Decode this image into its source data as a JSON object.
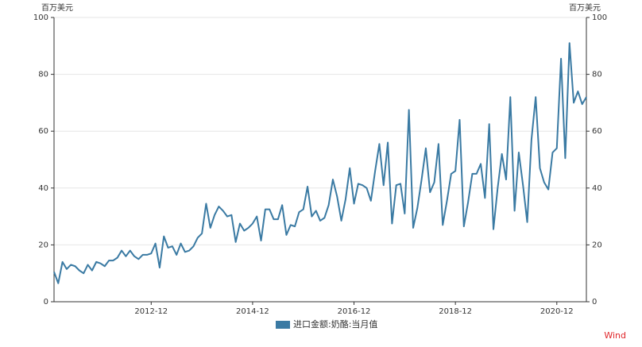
{
  "chart_data": {
    "type": "line",
    "y_unit": "百万美元",
    "y2_unit": "百万美元",
    "x": [
      "2011-01",
      "2011-02",
      "2011-03",
      "2011-04",
      "2011-05",
      "2011-06",
      "2011-07",
      "2011-08",
      "2011-09",
      "2011-10",
      "2011-11",
      "2011-12",
      "2012-01",
      "2012-02",
      "2012-03",
      "2012-04",
      "2012-05",
      "2012-06",
      "2012-07",
      "2012-08",
      "2012-09",
      "2012-10",
      "2012-11",
      "2012-12",
      "2013-01",
      "2013-02",
      "2013-03",
      "2013-04",
      "2013-05",
      "2013-06",
      "2013-07",
      "2013-08",
      "2013-09",
      "2013-10",
      "2013-11",
      "2013-12",
      "2014-01",
      "2014-02",
      "2014-03",
      "2014-04",
      "2014-05",
      "2014-06",
      "2014-07",
      "2014-08",
      "2014-09",
      "2014-10",
      "2014-11",
      "2014-12",
      "2015-01",
      "2015-02",
      "2015-03",
      "2015-04",
      "2015-05",
      "2015-06",
      "2015-07",
      "2015-08",
      "2015-09",
      "2015-10",
      "2015-11",
      "2015-12",
      "2016-01",
      "2016-02",
      "2016-03",
      "2016-04",
      "2016-05",
      "2016-06",
      "2016-07",
      "2016-08",
      "2016-09",
      "2016-10",
      "2016-11",
      "2016-12",
      "2017-01",
      "2017-02",
      "2017-03",
      "2017-04",
      "2017-05",
      "2017-06",
      "2017-07",
      "2017-08",
      "2017-09",
      "2017-10",
      "2017-11",
      "2017-12",
      "2018-01",
      "2018-02",
      "2018-03",
      "2018-04",
      "2018-05",
      "2018-06",
      "2018-07",
      "2018-08",
      "2018-09",
      "2018-10",
      "2018-11",
      "2018-12",
      "2019-01",
      "2019-02",
      "2019-03",
      "2019-04",
      "2019-05",
      "2019-06",
      "2019-07",
      "2019-08",
      "2019-09",
      "2019-10",
      "2019-11",
      "2019-12",
      "2020-01",
      "2020-02",
      "2020-03",
      "2020-04",
      "2020-05",
      "2020-06",
      "2020-07",
      "2020-08",
      "2020-09",
      "2020-10",
      "2020-11",
      "2020-12",
      "2021-01",
      "2021-02",
      "2021-03",
      "2021-04",
      "2021-05",
      "2021-06",
      "2021-07"
    ],
    "xticks": [
      "2012-12",
      "2014-12",
      "2016-12",
      "2018-12",
      "2020-12"
    ],
    "series": [
      {
        "name": "进口金额:奶酪:当月值",
        "color": "#3a7aa3",
        "values": [
          10.5,
          6.5,
          14,
          11.5,
          13,
          12.5,
          11,
          10,
          13,
          11,
          14,
          13.5,
          12.5,
          14.5,
          14.5,
          15.5,
          18,
          16,
          18,
          16,
          15,
          16.5,
          16.5,
          17,
          20.5,
          12,
          23,
          19,
          19.5,
          16.5,
          20.5,
          17.5,
          18,
          19.5,
          22.5,
          24,
          34.5,
          26,
          30.5,
          33.5,
          32,
          30,
          30.5,
          21,
          27.5,
          25,
          26,
          27.5,
          30,
          21.5,
          32.5,
          32.5,
          29,
          29,
          34,
          23.5,
          27,
          26.5,
          31.5,
          32.5,
          40.5,
          30,
          32,
          28.5,
          29.5,
          34,
          43,
          37,
          28.5,
          36,
          47,
          34.5,
          41.5,
          41,
          40,
          35.5,
          46,
          55.5,
          41,
          56,
          27.5,
          41,
          41.5,
          31,
          67.5,
          26,
          33,
          43,
          54,
          38.5,
          42,
          55.5,
          27,
          35.5,
          45,
          46,
          64,
          26.5,
          35,
          45,
          45,
          48.5,
          36.5,
          62.5,
          25.5,
          40,
          52,
          43,
          72,
          32,
          52.5,
          41,
          28,
          57,
          72,
          47,
          42,
          39.5,
          52.5,
          54,
          85.5,
          50.5,
          91,
          70,
          74,
          69.5,
          72
        ]
      }
    ],
    "ylim": [
      0,
      100
    ],
    "yticks": [
      0,
      20,
      40,
      60,
      80,
      100
    ],
    "y2lim": [
      0,
      100
    ],
    "y2ticks": [
      0,
      20,
      40,
      60,
      80,
      100
    ],
    "grid": true,
    "legend": "bottom",
    "source": "Wind"
  }
}
